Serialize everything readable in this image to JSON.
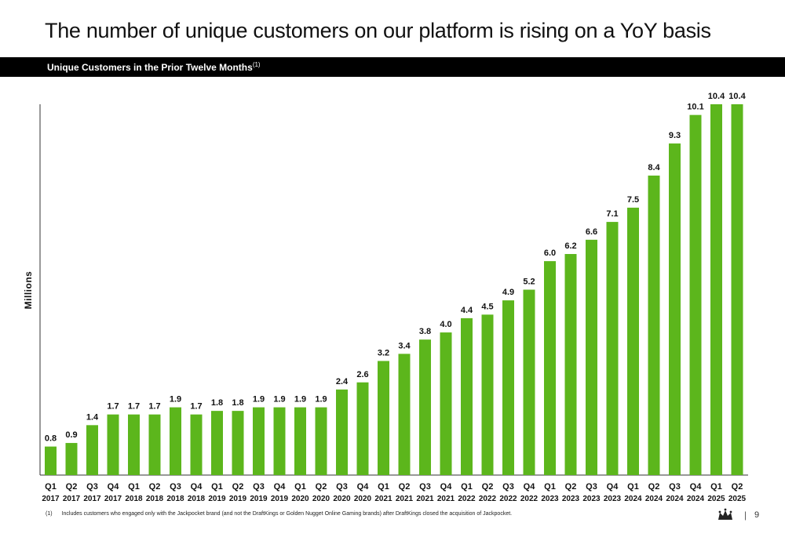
{
  "header": {
    "title": "The number of unique customers on our platform is rising on a YoY basis",
    "subtitle": "Unique Customers in the Prior Twelve Months",
    "subtitle_sup": "(1)"
  },
  "chart_data": {
    "type": "bar",
    "ylabel": "Millions",
    "ylim": [
      0,
      10.4
    ],
    "grid": false,
    "bar_color": "#5cb61c",
    "categories": [
      [
        "Q1",
        "2017"
      ],
      [
        "Q2",
        "2017"
      ],
      [
        "Q3",
        "2017"
      ],
      [
        "Q4",
        "2017"
      ],
      [
        "Q1",
        "2018"
      ],
      [
        "Q2",
        "2018"
      ],
      [
        "Q3",
        "2018"
      ],
      [
        "Q4",
        "2018"
      ],
      [
        "Q1",
        "2019"
      ],
      [
        "Q2",
        "2019"
      ],
      [
        "Q3",
        "2019"
      ],
      [
        "Q4",
        "2019"
      ],
      [
        "Q1",
        "2020"
      ],
      [
        "Q2",
        "2020"
      ],
      [
        "Q3",
        "2020"
      ],
      [
        "Q4",
        "2020"
      ],
      [
        "Q1",
        "2021"
      ],
      [
        "Q2",
        "2021"
      ],
      [
        "Q3",
        "2021"
      ],
      [
        "Q4",
        "2021"
      ],
      [
        "Q1",
        "2022"
      ],
      [
        "Q2",
        "2022"
      ],
      [
        "Q3",
        "2022"
      ],
      [
        "Q4",
        "2022"
      ],
      [
        "Q1",
        "2023"
      ],
      [
        "Q2",
        "2023"
      ],
      [
        "Q3",
        "2023"
      ],
      [
        "Q4",
        "2023"
      ],
      [
        "Q1",
        "2024"
      ],
      [
        "Q2",
        "2024"
      ],
      [
        "Q3",
        "2024"
      ],
      [
        "Q4",
        "2024"
      ],
      [
        "Q1",
        "2025"
      ],
      [
        "Q2",
        "2025"
      ]
    ],
    "values": [
      0.8,
      0.9,
      1.4,
      1.7,
      1.7,
      1.7,
      1.9,
      1.7,
      1.8,
      1.8,
      1.9,
      1.9,
      1.9,
      1.9,
      2.4,
      2.6,
      3.2,
      3.4,
      3.8,
      4.0,
      4.4,
      4.5,
      4.9,
      5.2,
      6.0,
      6.2,
      6.6,
      7.1,
      7.5,
      8.4,
      9.3,
      10.1,
      10.4,
      10.4
    ],
    "labels": [
      "0.8",
      "0.9",
      "1.4",
      "1.7",
      "1.7",
      "1.7",
      "1.9",
      "1.7",
      "1.8",
      "1.8",
      "1.9",
      "1.9",
      "1.9",
      "1.9",
      "2.4",
      "2.6",
      "3.2",
      "3.4",
      "3.8",
      "4.0",
      "4.4",
      "4.5",
      "4.9",
      "5.2",
      "6.0",
      "6.2",
      "6.6",
      "7.1",
      "7.5",
      "8.4",
      "9.3",
      "10.1",
      "10.4",
      "10.4"
    ]
  },
  "footnote": {
    "number": "(1)",
    "text": "Includes customers who engaged only with the Jackpocket brand (and not the DraftKings or Golden Nugget Online Gaming brands) after DraftKings closed the acquisition of Jackpocket."
  },
  "footer": {
    "separator": "|",
    "page_number": "9",
    "logo_icon": "crown-logo-icon"
  }
}
